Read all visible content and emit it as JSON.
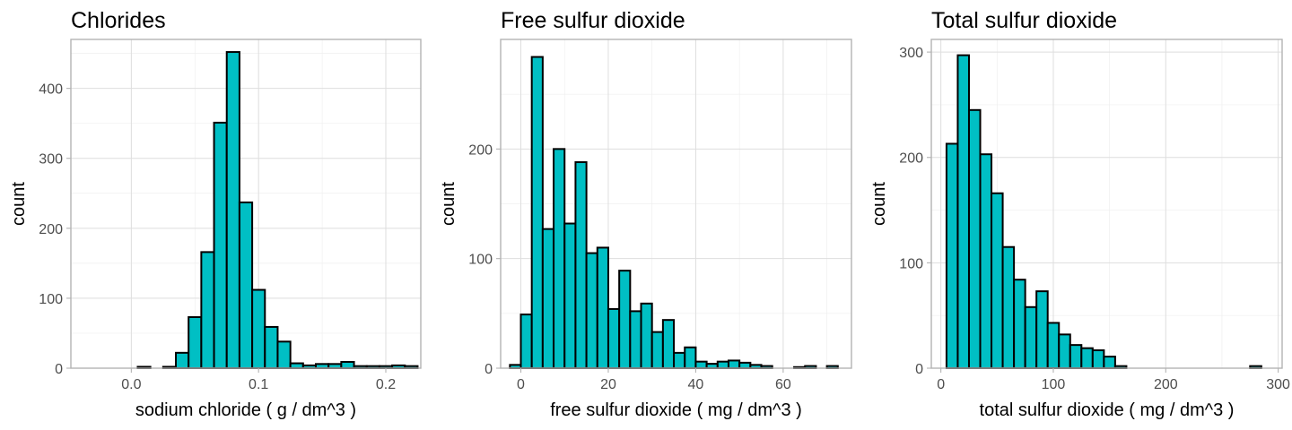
{
  "colors": {
    "bar_fill": "#00bfc4",
    "bar_stroke": "#000000"
  },
  "chart_data": [
    {
      "type": "bar",
      "title": "Chlorides",
      "xlabel": "sodium chloride ( g / dm^3 )",
      "ylabel": "count",
      "xlim": [
        -0.0475,
        0.2275
      ],
      "ylim": [
        0,
        470
      ],
      "xticks": [
        0.0,
        0.1,
        0.2
      ],
      "xtick_labels": [
        "0.0",
        "0.1",
        "0.2"
      ],
      "yticks": [
        0,
        100,
        200,
        300,
        400
      ],
      "grid": true,
      "bin_width": 0.01,
      "x": [
        -0.04,
        -0.03,
        -0.02,
        -0.01,
        0.0,
        0.01,
        0.02,
        0.03,
        0.04,
        0.05,
        0.06,
        0.07,
        0.08,
        0.09,
        0.1,
        0.11,
        0.12,
        0.13,
        0.14,
        0.15,
        0.16,
        0.17,
        0.18,
        0.19,
        0.2,
        0.21,
        0.22
      ],
      "values": [
        0,
        0,
        0,
        0,
        0,
        2,
        0,
        2,
        22,
        73,
        166,
        351,
        452,
        237,
        112,
        59,
        38,
        7,
        4,
        6,
        6,
        9,
        3,
        3,
        3,
        4,
        3
      ]
    },
    {
      "type": "bar",
      "title": "Free sulfur dioxide",
      "xlabel": "free sulfur dioxide ( mg / dm^3 )",
      "ylabel": "count",
      "xlim": [
        -4.62,
        75.62
      ],
      "ylim": [
        0,
        300
      ],
      "xticks": [
        0,
        20,
        40,
        60
      ],
      "xtick_labels": [
        "0",
        "20",
        "40",
        "60"
      ],
      "yticks": [
        0,
        100,
        200
      ],
      "grid": true,
      "bin_width": 2.5,
      "x": [
        -1.25,
        1.25,
        3.75,
        6.25,
        8.75,
        11.25,
        13.75,
        16.25,
        18.75,
        21.25,
        23.75,
        26.25,
        28.75,
        31.25,
        33.75,
        36.25,
        38.75,
        41.25,
        43.75,
        46.25,
        48.75,
        51.25,
        53.75,
        56.25,
        58.75,
        61.25,
        63.75,
        66.25,
        68.75,
        71.25
      ],
      "values": [
        3,
        49,
        284,
        127,
        200,
        132,
        188,
        105,
        110,
        54,
        89,
        52,
        59,
        33,
        44,
        14,
        19,
        6,
        4,
        6,
        7,
        5,
        3,
        2,
        0,
        0,
        1,
        2,
        0,
        2
      ]
    },
    {
      "type": "bar",
      "title": "Total sulfur dioxide",
      "xlabel": "total sulfur dioxide ( mg / dm^3 )",
      "ylabel": "count",
      "xlim": [
        -8.5,
        303.5
      ],
      "ylim": [
        0,
        312
      ],
      "xticks": [
        0,
        100,
        200,
        300
      ],
      "xtick_labels": [
        "0",
        "100",
        "200",
        "300"
      ],
      "yticks": [
        0,
        100,
        200,
        300
      ],
      "grid": true,
      "bin_width": 10,
      "x": [
        10,
        20,
        30,
        40,
        50,
        60,
        70,
        80,
        90,
        100,
        110,
        120,
        130,
        140,
        150,
        160,
        170,
        180,
        190,
        200,
        210,
        220,
        230,
        240,
        250,
        260,
        270,
        280,
        290
      ],
      "values": [
        213,
        297,
        245,
        203,
        166,
        115,
        84,
        58,
        73,
        43,
        32,
        22,
        19,
        17,
        11,
        2,
        0,
        0,
        0,
        0,
        0,
        0,
        0,
        0,
        0,
        0,
        0,
        2,
        0
      ]
    }
  ]
}
